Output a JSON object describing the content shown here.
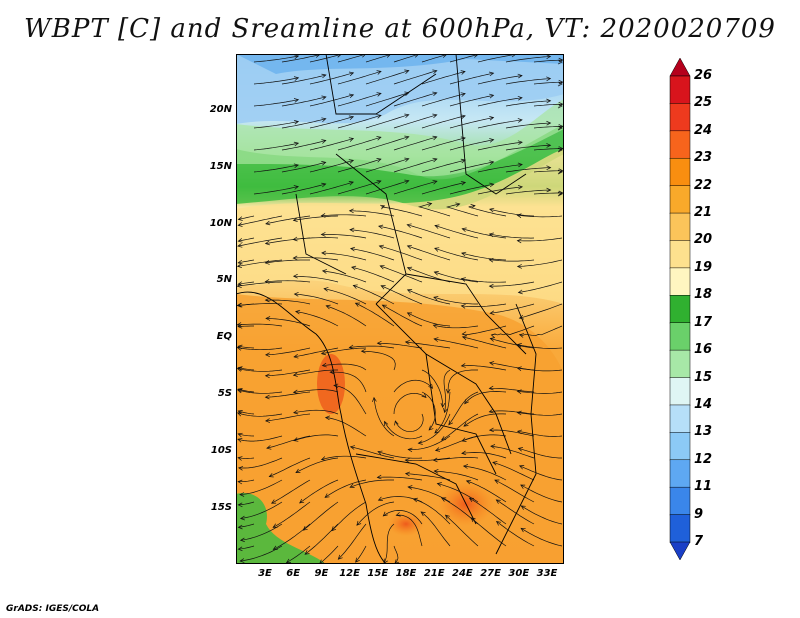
{
  "title": "WBPT [C] and Sreamline at 600hPa, VT: 2020020709",
  "credit": "GrADS: IGES/COLA",
  "map": {
    "lat_labels": [
      "20N",
      "15N",
      "10N",
      "5N",
      "EQ",
      "5S",
      "10S",
      "15S"
    ],
    "lon_labels": [
      "3E",
      "6E",
      "9E",
      "12E",
      "15E",
      "18E",
      "21E",
      "24E",
      "27E",
      "30E",
      "33E"
    ],
    "lat_range": [
      -20,
      24
    ],
    "lon_range": [
      0,
      35
    ],
    "field": "WBPT",
    "overlay": "streamlines"
  },
  "colorbar": {
    "labels": [
      "26",
      "25",
      "24",
      "23",
      "22",
      "21",
      "20",
      "19",
      "18",
      "17",
      "16",
      "15",
      "14",
      "13",
      "12",
      "11",
      "9",
      "7"
    ],
    "colors": [
      "#b5001c",
      "#d8141c",
      "#ee3a1e",
      "#f7641c",
      "#f98e10",
      "#f9a92a",
      "#fbc45a",
      "#fde18e",
      "#fff6c0",
      "#30b030",
      "#6ad06a",
      "#a7e8a7",
      "#dff6f4",
      "#b6dff8",
      "#8ccaf6",
      "#5ea8f2",
      "#3a86ea",
      "#1f60da",
      "#1a3fc6"
    ]
  }
}
